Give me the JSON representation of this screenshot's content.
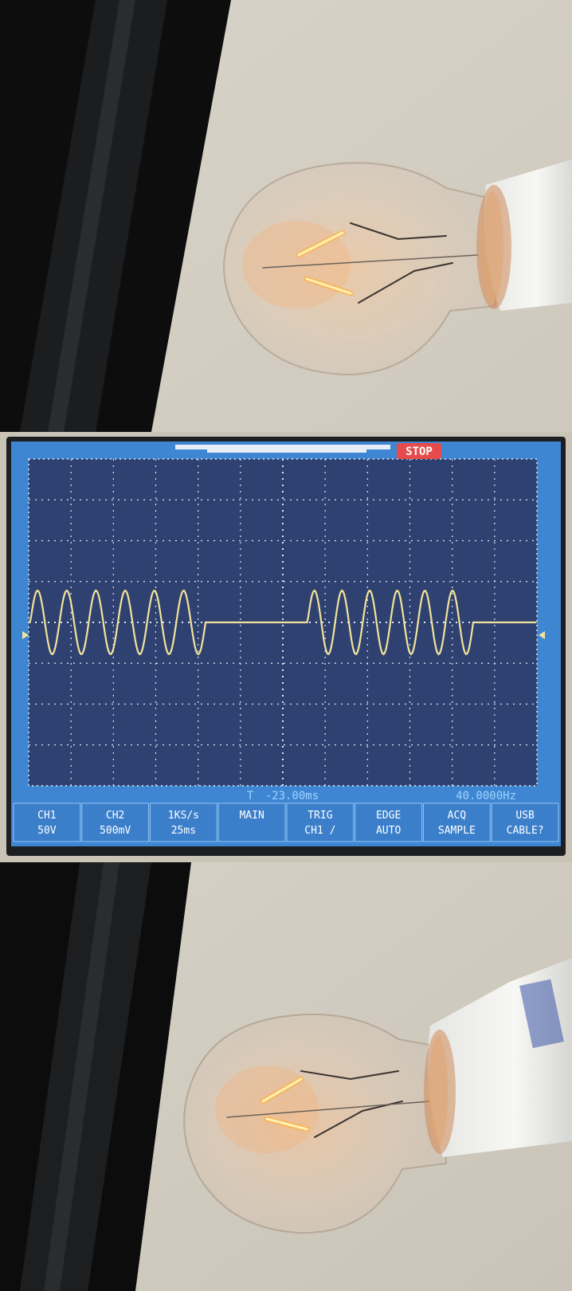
{
  "oscilloscope": {
    "run_status": "STOP",
    "horizontal_position": "-23.00ms",
    "frequency": "40.0000Hz",
    "trigger_marker": "T",
    "menu": [
      {
        "top": "CH1",
        "bottom": "50V"
      },
      {
        "top": "CH2",
        "bottom": "500mV"
      },
      {
        "top": "1KS/s",
        "bottom": "25ms"
      },
      {
        "top": "MAIN",
        "bottom": ""
      },
      {
        "top": "TRIG",
        "bottom": "CH1 /"
      },
      {
        "top": "EDGE",
        "bottom": "AUTO"
      },
      {
        "top": "ACQ",
        "bottom": "SAMPLE"
      },
      {
        "top": "USB",
        "bottom": "CABLE?"
      }
    ],
    "colors": {
      "screen": "#2f4170",
      "frame": "#3f86d2",
      "trace": "#f2e49a",
      "stop_badge": "#e84b4b"
    }
  }
}
